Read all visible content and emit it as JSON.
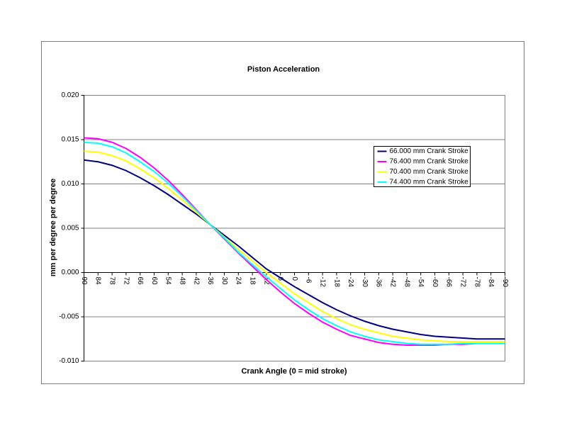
{
  "chart_data": {
    "type": "line",
    "title": "Piston Acceleration",
    "x_label": "Crank Angle (0 = mid stroke)",
    "y_label": "mm per degree per degree",
    "categories": [
      90,
      84,
      78,
      72,
      66,
      60,
      54,
      48,
      42,
      36,
      30,
      24,
      18,
      12,
      6,
      0,
      -6,
      -12,
      -18,
      -24,
      -30,
      -36,
      -42,
      -48,
      -54,
      -60,
      -66,
      -72,
      -78,
      -84,
      -90
    ],
    "ylim": [
      -0.01,
      0.02
    ],
    "yticks": [
      {
        "value": -0.01,
        "label": "-0.010"
      },
      {
        "value": -0.005,
        "label": "-0.005"
      },
      {
        "value": 0,
        "label": "0.000"
      },
      {
        "value": 0.005,
        "label": "0.005"
      },
      {
        "value": 0.01,
        "label": "0.010"
      },
      {
        "value": 0.015,
        "label": "0.015"
      },
      {
        "value": 0.02,
        "label": "0.020"
      }
    ],
    "grid": true,
    "legend": "right",
    "series": [
      {
        "name": "66.000 mm Crank Stroke",
        "color": "#000080",
        "values": [
          0.0127,
          0.0125,
          0.0121,
          0.0115,
          0.0107,
          0.0098,
          0.0088,
          0.0077,
          0.0066,
          0.0054,
          0.0042,
          0.003,
          0.0017,
          0.0004,
          -0.0006,
          -0.0016,
          -0.0025,
          -0.0034,
          -0.0042,
          -0.0049,
          -0.0055,
          -0.006,
          -0.0064,
          -0.0067,
          -0.007,
          -0.0072,
          -0.0073,
          -0.0074,
          -0.0075,
          -0.0075,
          -0.0075
        ]
      },
      {
        "name": "76.400 mm Crank Stroke",
        "color": "#ff00ff",
        "values": [
          0.0152,
          0.0151,
          0.0147,
          0.014,
          0.013,
          0.0118,
          0.0104,
          0.0088,
          0.0071,
          0.0054,
          0.0038,
          0.0022,
          0.0007,
          -0.0008,
          -0.0022,
          -0.0035,
          -0.0046,
          -0.0056,
          -0.0064,
          -0.0071,
          -0.0075,
          -0.0079,
          -0.0081,
          -0.0082,
          -0.0082,
          -0.0082,
          -0.0081,
          -0.0081,
          -0.008,
          -0.008,
          -0.008
        ]
      },
      {
        "name": "70.400 mm Crank Stroke",
        "color": "#ffff00",
        "values": [
          0.0137,
          0.0136,
          0.0132,
          0.0126,
          0.0117,
          0.0107,
          0.0095,
          0.0082,
          0.0068,
          0.0054,
          0.004,
          0.0026,
          0.0013,
          0.0,
          -0.0012,
          -0.0024,
          -0.0034,
          -0.0044,
          -0.0052,
          -0.0059,
          -0.0064,
          -0.0068,
          -0.0072,
          -0.0074,
          -0.0076,
          -0.0077,
          -0.0078,
          -0.0078,
          -0.0078,
          -0.0078,
          -0.0078
        ]
      },
      {
        "name": "74.400 mm Crank Stroke",
        "color": "#00ffff",
        "values": [
          0.0147,
          0.0146,
          0.0142,
          0.0135,
          0.0125,
          0.0114,
          0.0101,
          0.0086,
          0.007,
          0.0054,
          0.0039,
          0.0023,
          0.0009,
          -0.0005,
          -0.0018,
          -0.0031,
          -0.0042,
          -0.0052,
          -0.006,
          -0.0067,
          -0.0072,
          -0.0076,
          -0.0078,
          -0.008,
          -0.0081,
          -0.0081,
          -0.0081,
          -0.008,
          -0.008,
          -0.008,
          -0.008
        ]
      }
    ]
  }
}
